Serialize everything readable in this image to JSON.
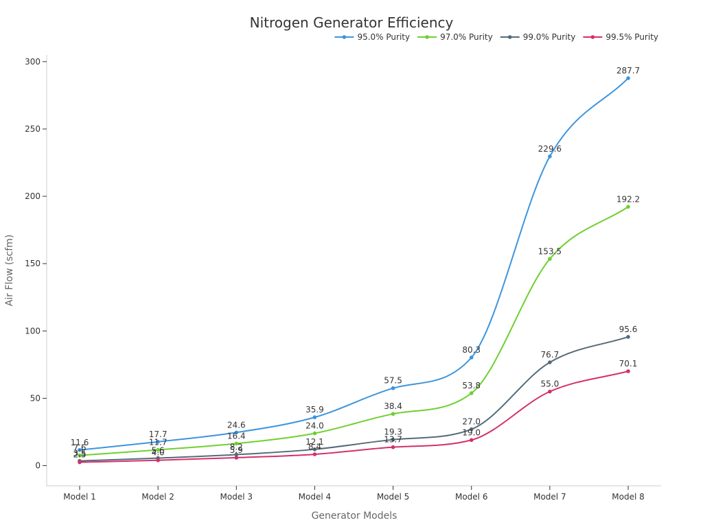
{
  "chart_data": {
    "type": "line",
    "title": "Nitrogen Generator Efficiency",
    "xlabel": "Generator Models",
    "ylabel": "Air Flow (scfm)",
    "categories": [
      "Model 1",
      "Model 2",
      "Model 3",
      "Model 4",
      "Model 5",
      "Model 6",
      "Model 7",
      "Model 8"
    ],
    "ylim": [
      -15,
      305
    ],
    "yticks": [
      0,
      50,
      100,
      150,
      200,
      250,
      300
    ],
    "grid": false,
    "legend_position": "top-right",
    "smooth": true,
    "series": [
      {
        "name": "95.0% Purity",
        "color": "#3b94de",
        "values": [
          11.6,
          17.7,
          24.6,
          35.9,
          57.5,
          80.3,
          229.6,
          287.7
        ]
      },
      {
        "name": "97.0% Purity",
        "color": "#6dd02f",
        "values": [
          7.6,
          11.7,
          16.4,
          24.0,
          38.4,
          53.8,
          153.5,
          192.2
        ]
      },
      {
        "name": "99.0% Purity",
        "color": "#546a79",
        "values": [
          3.5,
          5.6,
          8.2,
          12.1,
          19.3,
          27.0,
          76.7,
          95.6
        ]
      },
      {
        "name": "99.5% Purity",
        "color": "#d42f6a",
        "values": [
          2.5,
          4.0,
          5.9,
          8.4,
          13.7,
          19.0,
          55.0,
          70.1
        ]
      }
    ]
  }
}
